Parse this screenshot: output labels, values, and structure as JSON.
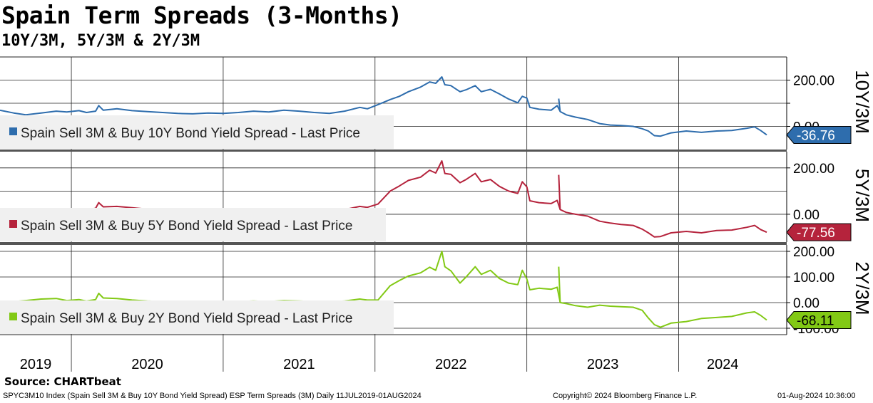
{
  "title": "Spain Term Spreads (3-Months)",
  "subtitle": "10Y/3M, 5Y/3M & 2Y/3M",
  "source": "Source: CHARTbeat",
  "footer": {
    "left": "SPYC3M10 Index (Spain Sell 3M & Buy 10Y Bond Yield Spread) ESP Term Spreads (3M)  Daily 11JUL2019-01AUG2024",
    "middle": "Copyright© 2024 Bloomberg Finance L.P.",
    "right": "01-Aug-2024 10:36:00"
  },
  "chart_data": {
    "type": "line",
    "x_labels": [
      "2019",
      "2020",
      "2021",
      "2022",
      "2023",
      "2024"
    ],
    "x_range": [
      2019.53,
      2024.58
    ],
    "panels": [
      {
        "name": "10Y/3M",
        "legend": "Spain Sell 3M & Buy 10Y Bond Yield Spread - Last Price",
        "last_value": "-36.76",
        "color": "#2e6dad",
        "ylim": [
          -100,
          300
        ],
        "yticks": [
          200,
          100,
          0
        ],
        "ytick_labels": [
          "200.00",
          "",
          "0.00"
        ],
        "gridlines": [
          200,
          100,
          0
        ],
        "points": [
          [
            2019.53,
            70
          ],
          [
            2019.62,
            58
          ],
          [
            2019.7,
            50
          ],
          [
            2019.8,
            58
          ],
          [
            2019.9,
            66
          ],
          [
            2019.97,
            62
          ],
          [
            2020.05,
            68
          ],
          [
            2020.1,
            60
          ],
          [
            2020.16,
            66
          ],
          [
            2020.18,
            90
          ],
          [
            2020.21,
            70
          ],
          [
            2020.3,
            76
          ],
          [
            2020.4,
            68
          ],
          [
            2020.5,
            64
          ],
          [
            2020.6,
            60
          ],
          [
            2020.7,
            56
          ],
          [
            2020.8,
            54
          ],
          [
            2020.9,
            58
          ],
          [
            2021.0,
            56
          ],
          [
            2021.1,
            60
          ],
          [
            2021.2,
            66
          ],
          [
            2021.3,
            62
          ],
          [
            2021.4,
            70
          ],
          [
            2021.5,
            66
          ],
          [
            2021.6,
            60
          ],
          [
            2021.7,
            56
          ],
          [
            2021.8,
            66
          ],
          [
            2021.9,
            82
          ],
          [
            2021.95,
            76
          ],
          [
            2022.02,
            94
          ],
          [
            2022.1,
            116
          ],
          [
            2022.16,
            130
          ],
          [
            2022.22,
            150
          ],
          [
            2022.3,
            170
          ],
          [
            2022.36,
            192
          ],
          [
            2022.4,
            186
          ],
          [
            2022.44,
            214
          ],
          [
            2022.46,
            180
          ],
          [
            2022.5,
            176
          ],
          [
            2022.56,
            150
          ],
          [
            2022.6,
            158
          ],
          [
            2022.66,
            176
          ],
          [
            2022.7,
            150
          ],
          [
            2022.76,
            160
          ],
          [
            2022.82,
            140
          ],
          [
            2022.88,
            118
          ],
          [
            2022.94,
            102
          ],
          [
            2022.97,
            130
          ],
          [
            2023.0,
            122
          ],
          [
            2023.02,
            82
          ],
          [
            2023.08,
            74
          ],
          [
            2023.16,
            70
          ],
          [
            2023.2,
            90
          ],
          [
            2023.22,
            64
          ],
          [
            2023.26,
            50
          ],
          [
            2023.32,
            40
          ],
          [
            2023.4,
            30
          ],
          [
            2023.48,
            12
          ],
          [
            2023.55,
            6
          ],
          [
            2023.62,
            4
          ],
          [
            2023.7,
            0
          ],
          [
            2023.76,
            -10
          ],
          [
            2023.8,
            -20
          ],
          [
            2023.84,
            -40
          ],
          [
            2023.88,
            -42
          ],
          [
            2023.95,
            -28
          ],
          [
            2024.05,
            -20
          ],
          [
            2024.15,
            -26
          ],
          [
            2024.25,
            -20
          ],
          [
            2024.35,
            -18
          ],
          [
            2024.45,
            -8
          ],
          [
            2024.5,
            -2
          ],
          [
            2024.54,
            -18
          ],
          [
            2024.58,
            -36.76
          ]
        ],
        "spikes": [
          [
            2023.21,
            120
          ]
        ]
      },
      {
        "name": "5Y/3M",
        "legend": "Spain Sell 3M & Buy 5Y Bond Yield Spread - Last Price",
        "last_value": "-77.56",
        "color": "#b5233c",
        "ylim": [
          -120,
          270
        ],
        "yticks": [
          200,
          0
        ],
        "ytick_labels": [
          "200.00",
          "0.00"
        ],
        "gridlines": [
          200,
          100,
          0
        ],
        "points": [
          [
            2019.53,
            20
          ],
          [
            2019.62,
            18
          ],
          [
            2019.7,
            14
          ],
          [
            2019.8,
            20
          ],
          [
            2019.9,
            24
          ],
          [
            2019.97,
            20
          ],
          [
            2020.05,
            24
          ],
          [
            2020.1,
            18
          ],
          [
            2020.16,
            26
          ],
          [
            2020.18,
            50
          ],
          [
            2020.21,
            32
          ],
          [
            2020.3,
            34
          ],
          [
            2020.4,
            28
          ],
          [
            2020.5,
            22
          ],
          [
            2020.6,
            20
          ],
          [
            2020.7,
            16
          ],
          [
            2020.8,
            14
          ],
          [
            2020.9,
            18
          ],
          [
            2021.0,
            16
          ],
          [
            2021.1,
            18
          ],
          [
            2021.2,
            22
          ],
          [
            2021.3,
            20
          ],
          [
            2021.4,
            24
          ],
          [
            2021.5,
            20
          ],
          [
            2021.6,
            16
          ],
          [
            2021.7,
            12
          ],
          [
            2021.8,
            20
          ],
          [
            2021.9,
            34
          ],
          [
            2021.95,
            30
          ],
          [
            2022.02,
            44
          ],
          [
            2022.1,
            100
          ],
          [
            2022.16,
            122
          ],
          [
            2022.22,
            146
          ],
          [
            2022.3,
            160
          ],
          [
            2022.36,
            190
          ],
          [
            2022.4,
            178
          ],
          [
            2022.44,
            230
          ],
          [
            2022.46,
            176
          ],
          [
            2022.5,
            172
          ],
          [
            2022.56,
            136
          ],
          [
            2022.6,
            150
          ],
          [
            2022.66,
            176
          ],
          [
            2022.7,
            140
          ],
          [
            2022.76,
            150
          ],
          [
            2022.82,
            120
          ],
          [
            2022.88,
            100
          ],
          [
            2022.94,
            90
          ],
          [
            2022.97,
            140
          ],
          [
            2023.0,
            118
          ],
          [
            2023.02,
            58
          ],
          [
            2023.08,
            50
          ],
          [
            2023.16,
            46
          ],
          [
            2023.2,
            60
          ],
          [
            2023.22,
            20
          ],
          [
            2023.26,
            8
          ],
          [
            2023.32,
            0
          ],
          [
            2023.4,
            -8
          ],
          [
            2023.48,
            -30
          ],
          [
            2023.55,
            -38
          ],
          [
            2023.62,
            -44
          ],
          [
            2023.7,
            -48
          ],
          [
            2023.76,
            -64
          ],
          [
            2023.8,
            -80
          ],
          [
            2023.84,
            -98
          ],
          [
            2023.88,
            -96
          ],
          [
            2023.95,
            -80
          ],
          [
            2024.05,
            -74
          ],
          [
            2024.15,
            -80
          ],
          [
            2024.25,
            -70
          ],
          [
            2024.35,
            -68
          ],
          [
            2024.45,
            -56
          ],
          [
            2024.5,
            -48
          ],
          [
            2024.54,
            -66
          ],
          [
            2024.58,
            -77.56
          ]
        ],
        "spikes": [
          [
            2023.21,
            170
          ]
        ]
      },
      {
        "name": "2Y/3M",
        "legend": "Spain Sell 3M & Buy 2Y Bond Yield Spread - Last Price",
        "last_value": "-68.11",
        "color": "#82c915",
        "ylim": [
          -125,
          225
        ],
        "yticks": [
          200,
          100,
          0,
          -100
        ],
        "ytick_labels": [
          "200.00",
          "100.00",
          "0.00",
          "-100.00"
        ],
        "gridlines": [
          200,
          100,
          0,
          -100
        ],
        "points": [
          [
            2019.53,
            0
          ],
          [
            2019.62,
            4
          ],
          [
            2019.7,
            8
          ],
          [
            2019.8,
            14
          ],
          [
            2019.9,
            16
          ],
          [
            2019.97,
            8
          ],
          [
            2020.05,
            12
          ],
          [
            2020.1,
            6
          ],
          [
            2020.16,
            12
          ],
          [
            2020.18,
            36
          ],
          [
            2020.21,
            18
          ],
          [
            2020.3,
            16
          ],
          [
            2020.4,
            10
          ],
          [
            2020.5,
            6
          ],
          [
            2020.6,
            4
          ],
          [
            2020.7,
            2
          ],
          [
            2020.8,
            0
          ],
          [
            2020.9,
            4
          ],
          [
            2021.0,
            2
          ],
          [
            2021.1,
            4
          ],
          [
            2021.2,
            6
          ],
          [
            2021.3,
            4
          ],
          [
            2021.4,
            8
          ],
          [
            2021.5,
            6
          ],
          [
            2021.6,
            4
          ],
          [
            2021.7,
            2
          ],
          [
            2021.8,
            6
          ],
          [
            2021.9,
            14
          ],
          [
            2021.95,
            10
          ],
          [
            2022.02,
            10
          ],
          [
            2022.1,
            66
          ],
          [
            2022.16,
            86
          ],
          [
            2022.22,
            104
          ],
          [
            2022.3,
            116
          ],
          [
            2022.36,
            138
          ],
          [
            2022.4,
            126
          ],
          [
            2022.44,
            200
          ],
          [
            2022.46,
            140
          ],
          [
            2022.5,
            124
          ],
          [
            2022.56,
            76
          ],
          [
            2022.6,
            100
          ],
          [
            2022.66,
            140
          ],
          [
            2022.7,
            110
          ],
          [
            2022.76,
            126
          ],
          [
            2022.82,
            94
          ],
          [
            2022.88,
            76
          ],
          [
            2022.94,
            70
          ],
          [
            2022.97,
            126
          ],
          [
            2023.0,
            92
          ],
          [
            2023.02,
            50
          ],
          [
            2023.08,
            56
          ],
          [
            2023.16,
            52
          ],
          [
            2023.2,
            60
          ],
          [
            2023.22,
            0
          ],
          [
            2023.26,
            -4
          ],
          [
            2023.32,
            -12
          ],
          [
            2023.4,
            -18
          ],
          [
            2023.48,
            -10
          ],
          [
            2023.55,
            -14
          ],
          [
            2023.62,
            -16
          ],
          [
            2023.7,
            -18
          ],
          [
            2023.76,
            -30
          ],
          [
            2023.8,
            -60
          ],
          [
            2023.84,
            -86
          ],
          [
            2023.88,
            -96
          ],
          [
            2023.95,
            -80
          ],
          [
            2024.05,
            -74
          ],
          [
            2024.15,
            -62
          ],
          [
            2024.25,
            -58
          ],
          [
            2024.35,
            -54
          ],
          [
            2024.45,
            -40
          ],
          [
            2024.5,
            -36
          ],
          [
            2024.54,
            -50
          ],
          [
            2024.58,
            -68.11
          ]
        ],
        "spikes": [
          [
            2023.21,
            140
          ]
        ]
      }
    ]
  }
}
